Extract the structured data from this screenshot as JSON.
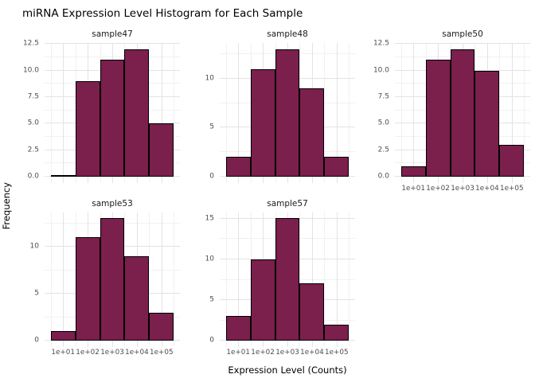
{
  "title": "miRNA Expression Level Histogram for Each Sample",
  "axes": {
    "x_label": "Expression Level (Counts)",
    "y_label": "Frequency"
  },
  "colors": {
    "bar_fill": "#7B1F4D",
    "bar_stroke": "#000000",
    "grid_major": "#E3E3E3",
    "grid_minor": "#F1F1F1",
    "axis_text": "#4D4D4D",
    "strip_text": "#1A1A1A",
    "title_text": "#000000",
    "background": "#FFFFFF"
  },
  "chart_data": [
    {
      "type": "bar",
      "title": "sample47",
      "categories": [
        "1e+01",
        "1e+02",
        "1e+03",
        "1e+04",
        "1e+05"
      ],
      "values": [
        0,
        9,
        11,
        12,
        5
      ],
      "y_ticks": {
        "labels": [
          "0.0",
          "2.5",
          "5.0",
          "7.5",
          "10.0",
          "12.5"
        ],
        "values": [
          0,
          2.5,
          5,
          7.5,
          10,
          12.5
        ]
      },
      "ylim": [
        0,
        12.6
      ],
      "xlabel": "",
      "ylabel": "",
      "grid": true,
      "show_x_labels": false
    },
    {
      "type": "bar",
      "title": "sample48",
      "categories": [
        "1e+01",
        "1e+02",
        "1e+03",
        "1e+04",
        "1e+05"
      ],
      "values": [
        2,
        11,
        13,
        9,
        2
      ],
      "y_ticks": {
        "labels": [
          "0",
          "5",
          "10"
        ],
        "values": [
          0,
          5,
          10
        ]
      },
      "ylim": [
        0,
        13.65
      ],
      "xlabel": "",
      "ylabel": "",
      "grid": true,
      "show_x_labels": false
    },
    {
      "type": "bar",
      "title": "sample50",
      "categories": [
        "1e+01",
        "1e+02",
        "1e+03",
        "1e+04",
        "1e+05"
      ],
      "values": [
        1,
        11,
        12,
        10,
        3
      ],
      "y_ticks": {
        "labels": [
          "0.0",
          "2.5",
          "5.0",
          "7.5",
          "10.0",
          "12.5"
        ],
        "values": [
          0,
          2.5,
          5,
          7.5,
          10,
          12.5
        ]
      },
      "ylim": [
        0,
        12.6
      ],
      "xlabel": "",
      "ylabel": "",
      "grid": true,
      "show_x_labels": true
    },
    {
      "type": "bar",
      "title": "sample53",
      "categories": [
        "1e+01",
        "1e+02",
        "1e+03",
        "1e+04",
        "1e+05"
      ],
      "values": [
        1,
        11,
        13,
        9,
        3
      ],
      "y_ticks": {
        "labels": [
          "0",
          "5",
          "10"
        ],
        "values": [
          0,
          5,
          10
        ]
      },
      "ylim": [
        0,
        13.65
      ],
      "xlabel": "",
      "ylabel": "",
      "grid": true,
      "show_x_labels": true
    },
    {
      "type": "bar",
      "title": "sample57",
      "categories": [
        "1e+01",
        "1e+02",
        "1e+03",
        "1e+04",
        "1e+05"
      ],
      "values": [
        3,
        10,
        15,
        7,
        2
      ],
      "y_ticks": {
        "labels": [
          "0",
          "5",
          "10",
          "15"
        ],
        "values": [
          0,
          5,
          10,
          15
        ]
      },
      "ylim": [
        0,
        15.75
      ],
      "xlabel": "",
      "ylabel": "",
      "grid": true,
      "show_x_labels": true
    }
  ]
}
